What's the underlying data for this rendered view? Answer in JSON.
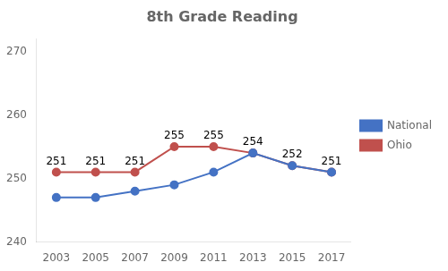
{
  "chart_data": {
    "type": "line",
    "title": "8th Grade Reading",
    "x": [
      2003,
      2005,
      2007,
      2009,
      2011,
      2013,
      2015,
      2017
    ],
    "series": [
      {
        "name": "National",
        "color": "#4472C4",
        "marker": "circle",
        "values": [
          247,
          247,
          248,
          249,
          251,
          254,
          252,
          251
        ]
      },
      {
        "name": "Ohio",
        "color": "#C0504D",
        "marker": "circle",
        "data_labels": true,
        "values": [
          251,
          251,
          251,
          255,
          255,
          254,
          252,
          251
        ]
      }
    ],
    "xlim": [
      2002,
      2018
    ],
    "xticks": [
      2003,
      2005,
      2007,
      2009,
      2011,
      2013,
      2015,
      2017
    ],
    "ylim": [
      240,
      272
    ],
    "yticks": [
      240,
      250,
      260,
      270
    ],
    "grid": false,
    "legend": "right"
  }
}
